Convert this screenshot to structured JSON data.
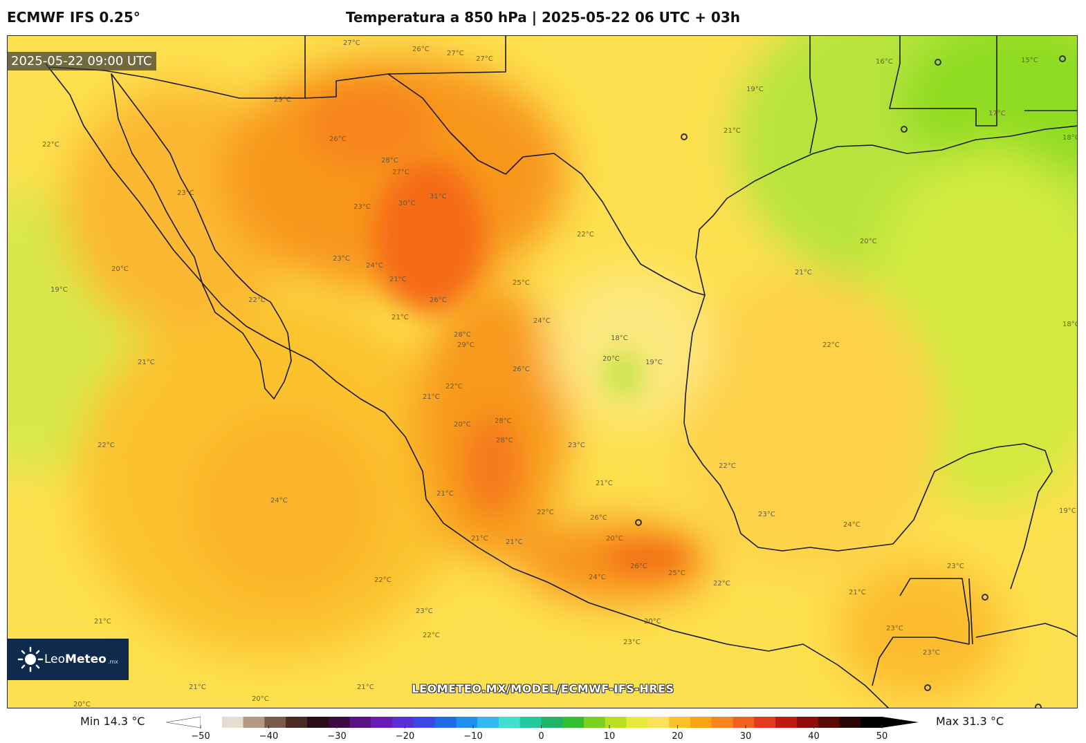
{
  "header": {
    "model": "ECMWF IFS 0.25°",
    "title": "Temperatura a 850 hPa | 2025-05-22 06 UTC + 03h"
  },
  "map": {
    "valid_time": "2025-05-22 09:00 UTC",
    "watermark_url": "LEOMETEO.MX/MODEL/ECMWF-IFS-HRES",
    "logo_text": {
      "a": "Leo",
      "b": "Meteo",
      "tld": ".mx"
    },
    "contour_labels": [
      "27°C",
      "27°C",
      "26°C",
      "27°C",
      "29°C",
      "26°C",
      "28°C",
      "27°C",
      "22°C",
      "23°C",
      "23°C",
      "23°C",
      "24°C",
      "30°C",
      "31°C",
      "20°C",
      "19°C",
      "22°C",
      "21°C",
      "26°C",
      "22°C",
      "25°C",
      "24°C",
      "18°C",
      "20°C",
      "19°C",
      "28°C",
      "29°C",
      "21°C",
      "22°C",
      "26°C",
      "21°C",
      "28°C",
      "28°C",
      "22°C",
      "20°C",
      "24°C",
      "21°C",
      "21°C",
      "22°C",
      "23°C",
      "26°C",
      "26°C",
      "25°C",
      "24°C",
      "22°C",
      "23°C",
      "21°C",
      "20°C",
      "16°C",
      "15°C",
      "19°C",
      "21°C",
      "17°C",
      "18°C",
      "20°C",
      "21°C",
      "22°C",
      "18°C",
      "22°C",
      "23°C",
      "24°C",
      "19°C",
      "23°C",
      "21°C",
      "23°C",
      "23°C",
      "22°C",
      "21°C",
      "20°C",
      "21°C",
      "21°C",
      "20°C",
      "21°C",
      "20°C",
      "21°C",
      "22°C",
      "23°C"
    ]
  },
  "colorbar": {
    "min_label": "Min 14.3 °C",
    "max_label": "Max 31.3 °C",
    "ticks": [
      "−50",
      "−40",
      "−30",
      "−20",
      "−10",
      "0",
      "10",
      "20",
      "30",
      "40",
      "50"
    ],
    "colors": [
      "#ffffff",
      "#e6dccf",
      "#b49a84",
      "#7a5a4a",
      "#4a2a22",
      "#2a0e1a",
      "#3b0a45",
      "#5a1282",
      "#6a1bb4",
      "#5b2fd6",
      "#3b48e6",
      "#1f6be6",
      "#1e90f0",
      "#30b8f0",
      "#3fe0d0",
      "#22c8a0",
      "#1fb46a",
      "#32c030",
      "#7ad21f",
      "#b8e01f",
      "#e8ea3a",
      "#fde05a",
      "#fdc22a",
      "#fba413",
      "#f7851b",
      "#f0601e",
      "#e03a1f",
      "#c01a10",
      "#8e0c08",
      "#5a0806",
      "#2a0402",
      "#000000"
    ],
    "map_colors": {
      "ocean_cool": "#d8e84a",
      "warm_yellow": "#fde04f",
      "orange": "#fbb32a",
      "deep_orange": "#f8861e",
      "hot": "#f56a14",
      "green": "#a6e03a",
      "bright_green": "#8fdc20"
    }
  }
}
